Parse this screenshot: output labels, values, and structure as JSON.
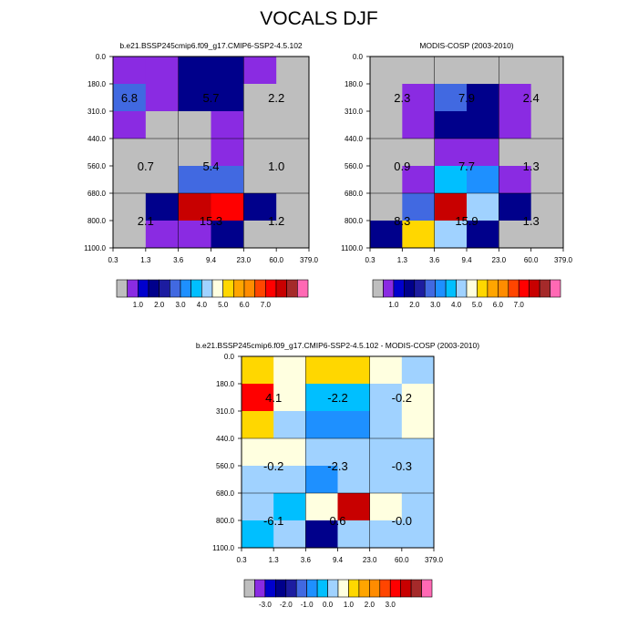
{
  "figure": {
    "title": "VOCALS DJF"
  },
  "colormaps": {
    "abs": [
      "#bebebe",
      "#8a2be2",
      "#0000cd",
      "#00008b",
      "#1c1ca0",
      "#4169e1",
      "#1e90ff",
      "#00bfff",
      "#a0d2ff",
      "#ffffe0",
      "#ffd700",
      "#ffa500",
      "#ff8c00",
      "#ff4500",
      "#ff0000",
      "#c80000",
      "#a52a2a",
      "#ff69b4"
    ],
    "diff": [
      "#bebebe",
      "#8a2be2",
      "#0000cd",
      "#00008b",
      "#1c1ca0",
      "#4169e1",
      "#1e90ff",
      "#00bfff",
      "#a0d2ff",
      "#ffffe0",
      "#ffd700",
      "#ffa500",
      "#ff8c00",
      "#ff4500",
      "#ff0000",
      "#c80000",
      "#a52a2a",
      "#ff69b4"
    ]
  },
  "chart_data": [
    {
      "type": "heatmap",
      "title": "b.e21.BSSP245cmip6.f09_g17.CMIP6-SSP2-4.5.102",
      "x_ticks": [
        "0.3",
        "1.3",
        "3.6",
        "9.4",
        "23.0",
        "60.0",
        "379.0"
      ],
      "y_ticks": [
        "0.0",
        "180.0",
        "310.0",
        "440.0",
        "560.0",
        "680.0",
        "800.0",
        "1100.0"
      ],
      "cells": [
        [
          1,
          1,
          3,
          3,
          1,
          0
        ],
        [
          5,
          1,
          3,
          3,
          0,
          0
        ],
        [
          1,
          0,
          0,
          1,
          0,
          0
        ],
        [
          0,
          0,
          0,
          1,
          0,
          0
        ],
        [
          0,
          0,
          5,
          5,
          0,
          0
        ],
        [
          0,
          3,
          15,
          14,
          3,
          0
        ],
        [
          0,
          1,
          1,
          3,
          0,
          0
        ]
      ],
      "labels": [
        {
          "text": "6.8",
          "col": 0.5,
          "row": 1.5
        },
        {
          "text": "5.7",
          "col": 3.0,
          "row": 1.5
        },
        {
          "text": "2.2",
          "col": 5.0,
          "row": 1.5
        },
        {
          "text": "0.7",
          "col": 1.0,
          "row": 4.0
        },
        {
          "text": "5.4",
          "col": 3.0,
          "row": 4.0
        },
        {
          "text": "1.0",
          "col": 5.0,
          "row": 4.0
        },
        {
          "text": "2.1",
          "col": 1.0,
          "row": 6.0
        },
        {
          "text": "15.3",
          "col": 3.0,
          "row": 6.0
        },
        {
          "text": "1.2",
          "col": 5.0,
          "row": 6.0
        }
      ],
      "colorbar": {
        "colormap": "abs",
        "labels": [
          "1.0",
          "2.0",
          "3.0",
          "4.0",
          "5.0",
          "6.0",
          "7.0"
        ]
      }
    },
    {
      "type": "heatmap",
      "title": "MODIS-COSP (2003-2010)",
      "x_ticks": [
        "0.3",
        "1.3",
        "3.6",
        "9.4",
        "23.0",
        "60.0",
        "379.0"
      ],
      "y_ticks": [
        "0.0",
        "180.0",
        "310.0",
        "440.0",
        "560.0",
        "680.0",
        "800.0",
        "1100.0"
      ],
      "cells": [
        [
          0,
          0,
          0,
          0,
          0,
          0
        ],
        [
          0,
          1,
          5,
          3,
          1,
          0
        ],
        [
          0,
          1,
          3,
          3,
          1,
          0
        ],
        [
          0,
          0,
          1,
          1,
          0,
          0
        ],
        [
          0,
          1,
          7,
          6,
          1,
          0
        ],
        [
          0,
          5,
          15,
          8,
          3,
          0
        ],
        [
          3,
          10,
          8,
          3,
          0,
          0
        ]
      ],
      "labels": [
        {
          "text": "2.3",
          "col": 1.0,
          "row": 1.5
        },
        {
          "text": "7.9",
          "col": 3.0,
          "row": 1.5
        },
        {
          "text": "2.4",
          "col": 5.0,
          "row": 1.5
        },
        {
          "text": "0.9",
          "col": 1.0,
          "row": 4.0
        },
        {
          "text": "7.7",
          "col": 3.0,
          "row": 4.0
        },
        {
          "text": "1.3",
          "col": 5.0,
          "row": 4.0
        },
        {
          "text": "8.3",
          "col": 1.0,
          "row": 6.0
        },
        {
          "text": "15.9",
          "col": 3.0,
          "row": 6.0
        },
        {
          "text": "1.3",
          "col": 5.0,
          "row": 6.0
        }
      ],
      "colorbar": {
        "colormap": "abs",
        "labels": [
          "1.0",
          "2.0",
          "3.0",
          "4.0",
          "5.0",
          "6.0",
          "7.0"
        ]
      }
    },
    {
      "type": "heatmap",
      "title": "b.e21.BSSP245cmip6.f09_g17.CMIP6-SSP2-4.5.102 - MODIS-COSP (2003-2010)",
      "x_ticks": [
        "0.3",
        "1.3",
        "3.6",
        "9.4",
        "23.0",
        "60.0",
        "379.0"
      ],
      "y_ticks": [
        "0.0",
        "180.0",
        "310.0",
        "440.0",
        "560.0",
        "680.0",
        "800.0",
        "1100.0"
      ],
      "cells": [
        [
          10,
          9,
          10,
          10,
          9,
          8
        ],
        [
          14,
          9,
          7,
          7,
          8,
          9
        ],
        [
          10,
          8,
          6,
          6,
          8,
          9
        ],
        [
          9,
          9,
          8,
          8,
          8,
          8
        ],
        [
          8,
          8,
          6,
          8,
          8,
          8
        ],
        [
          8,
          7,
          9,
          15,
          9,
          8
        ],
        [
          7,
          8,
          3,
          8,
          8,
          8
        ]
      ],
      "labels": [
        {
          "text": "4.1",
          "col": 1.0,
          "row": 1.5
        },
        {
          "text": "-2.2",
          "col": 3.0,
          "row": 1.5
        },
        {
          "text": "-0.2",
          "col": 5.0,
          "row": 1.5
        },
        {
          "text": "-0.2",
          "col": 1.0,
          "row": 4.0
        },
        {
          "text": "-2.3",
          "col": 3.0,
          "row": 4.0
        },
        {
          "text": "-0.3",
          "col": 5.0,
          "row": 4.0
        },
        {
          "text": "-6.1",
          "col": 1.0,
          "row": 6.0
        },
        {
          "text": "0.6",
          "col": 3.0,
          "row": 6.0
        },
        {
          "text": "-0.0",
          "col": 5.0,
          "row": 6.0
        }
      ],
      "colorbar": {
        "colormap": "diff",
        "labels": [
          "-3.0",
          "-2.0",
          "-1.0",
          "0.0",
          "1.0",
          "2.0",
          "3.0"
        ]
      }
    }
  ]
}
